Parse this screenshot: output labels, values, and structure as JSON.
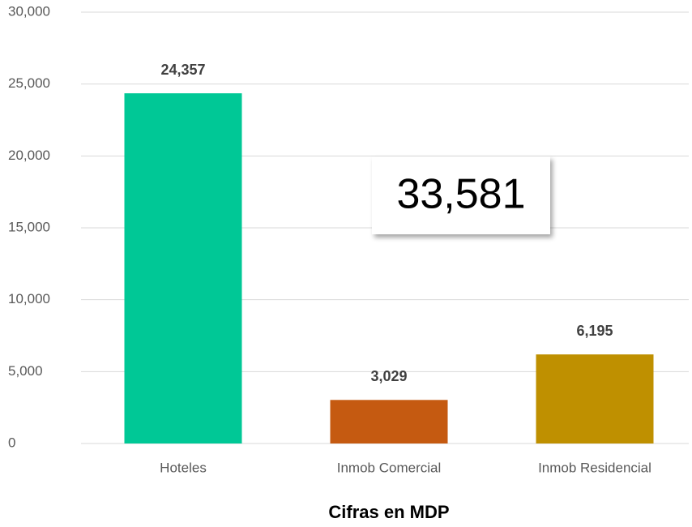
{
  "chart_data": {
    "type": "bar",
    "x_axis_label": "Cifras en MDP",
    "annotation": "33,581",
    "categories": [
      "Hoteles",
      "Inmob Comercial",
      "Inmob Residencial"
    ],
    "values": [
      24357,
      3029,
      6195
    ],
    "value_labels": [
      "24,357",
      "3,029",
      "6,195"
    ],
    "colors": [
      "#00c896",
      "#c55a11",
      "#bf9000"
    ],
    "ylim": [
      0,
      30000
    ],
    "yticks": [
      0,
      {
        "value": 5000,
        "label": "5,000"
      },
      {
        "value": 10000,
        "label": "10,000"
      },
      {
        "value": 15000,
        "label": "15,000"
      },
      {
        "value": 20000,
        "label": "20,000"
      },
      {
        "value": 25000,
        "label": "25,000"
      },
      {
        "value": 30000,
        "label": "30,000"
      }
    ],
    "grid": true
  }
}
